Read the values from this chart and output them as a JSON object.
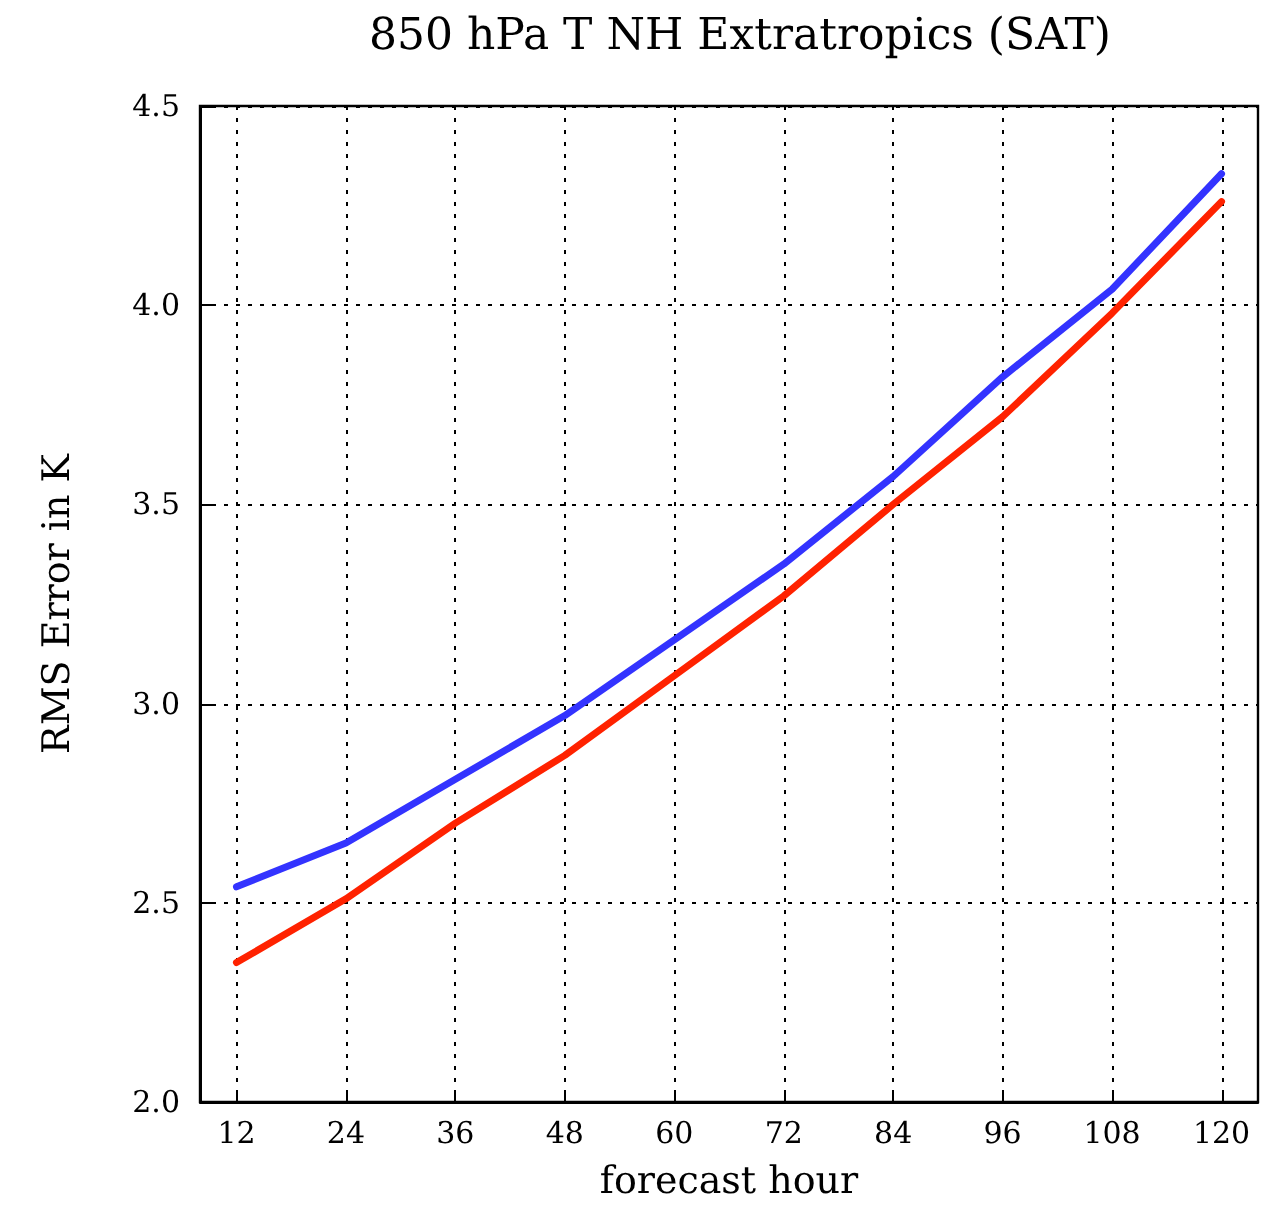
{
  "chart_data": {
    "type": "line",
    "title": "850 hPa T NH Extratropics (SAT)",
    "xlabel": "forecast hour",
    "ylabel": "RMS Error in K",
    "x": [
      12,
      24,
      36,
      48,
      60,
      72,
      84,
      96,
      108,
      120
    ],
    "series": [
      {
        "color": "#3333ff",
        "values": [
          2.54,
          2.65,
          2.81,
          2.97,
          3.16,
          3.35,
          3.57,
          3.82,
          4.04,
          4.33
        ]
      },
      {
        "color": "#ff2200",
        "values": [
          2.35,
          2.51,
          2.7,
          2.87,
          3.07,
          3.27,
          3.5,
          3.72,
          3.98,
          4.26
        ]
      }
    ],
    "xlim": [
      8,
      124
    ],
    "xticks": [
      12,
      24,
      36,
      48,
      60,
      72,
      84,
      96,
      108,
      120
    ],
    "ylim": [
      2.0,
      4.5
    ],
    "yticks": [
      {
        "value": 2.0,
        "label": "2.0"
      },
      2.5,
      {
        "value": 3.0,
        "label": "3.0"
      },
      3.5,
      {
        "value": 4.0,
        "label": "4.0"
      },
      4.5
    ],
    "grid": true,
    "marker": "none",
    "line_style": "solid"
  }
}
